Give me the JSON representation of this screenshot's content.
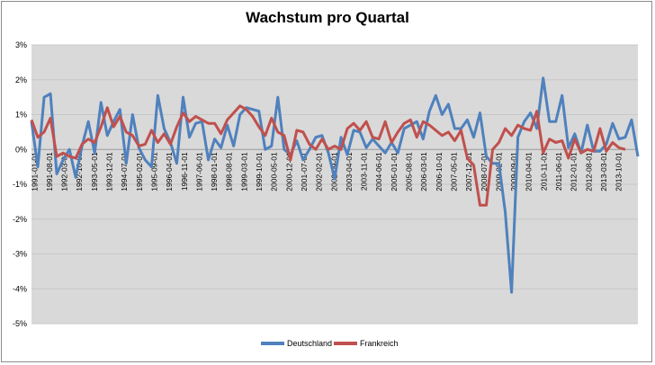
{
  "chart_data": {
    "type": "line",
    "title": "Wachstum pro Quartal",
    "ylim": [
      -5,
      3
    ],
    "yticks": [
      "3%",
      "2%",
      "1%",
      "0%",
      "-1%",
      "-2%",
      "-3%",
      "-4%",
      "-5%"
    ],
    "ytick_values": [
      3,
      2,
      1,
      0,
      -1,
      -2,
      -3,
      -4,
      -5
    ],
    "xlabels": [
      "1991-01-01",
      "1991-08-01",
      "1992-03-01",
      "1992-10-01",
      "1993-05-01",
      "1993-12-01",
      "1994-07-01",
      "1995-02-01",
      "1995-09-01",
      "1996-04-01",
      "1996-11-01",
      "1997-06-01",
      "1998-01-01",
      "1998-08-01",
      "1999-03-01",
      "1999-10-01",
      "2000-05-01",
      "2000-12-01",
      "2001-07-01",
      "2002-02-01",
      "2002-09-01",
      "2003-04-01",
      "2003-11-01",
      "2004-06-01",
      "2005-01-01",
      "2005-08-01",
      "2006-03-01",
      "2006-10-01",
      "2007-05-01",
      "2007-12-01",
      "2008-07-01",
      "2009-02-01",
      "2009-09-01",
      "2010-04-01",
      "2010-11-01",
      "2011-06-01",
      "2012-01-01",
      "2012-08-01",
      "2013-03-01",
      "2013-10-01"
    ],
    "grid": true,
    "legend_position": "bottom",
    "series": [
      {
        "name": "Deutschland",
        "color": "#4f81bd",
        "values": [
          0.8,
          -0.5,
          1.5,
          1.6,
          -0.7,
          -0.3,
          0.0,
          -0.8,
          0.1,
          0.8,
          -0.1,
          1.35,
          0.4,
          0.8,
          1.15,
          -0.4,
          1.0,
          0.05,
          -0.3,
          -0.5,
          1.55,
          0.6,
          0.2,
          -0.4,
          1.5,
          0.35,
          0.75,
          0.8,
          -0.3,
          0.3,
          0.05,
          0.7,
          0.1,
          1.0,
          1.2,
          1.15,
          1.1,
          0.0,
          0.1,
          1.5,
          0.0,
          -0.15,
          0.25,
          -0.3,
          0.0,
          0.35,
          0.4,
          -0.1,
          -0.85,
          0.35,
          -0.15,
          0.55,
          0.5,
          0.05,
          0.3,
          0.1,
          -0.1,
          0.2,
          -0.1,
          0.6,
          0.7,
          0.8,
          0.3,
          1.1,
          1.55,
          1.0,
          1.3,
          0.6,
          0.6,
          0.85,
          0.35,
          1.05,
          -0.2,
          -0.4,
          -0.4,
          -1.8,
          -4.1,
          0.35,
          0.8,
          1.05,
          0.6,
          2.05,
          0.8,
          0.8,
          1.55,
          0.05,
          0.45,
          -0.1,
          0.7,
          -0.05,
          -0.05,
          0.15,
          0.75,
          0.3,
          0.35,
          0.85,
          -0.2
        ]
      },
      {
        "name": "Frankreich",
        "color": "#c0504d",
        "values": [
          0.85,
          0.35,
          0.5,
          0.9,
          -0.2,
          -0.1,
          -0.2,
          -0.25,
          0.15,
          0.3,
          0.2,
          0.65,
          1.2,
          0.65,
          0.95,
          0.5,
          0.4,
          0.1,
          0.15,
          0.55,
          0.2,
          0.45,
          0.15,
          0.65,
          1.05,
          0.8,
          0.95,
          0.85,
          0.75,
          0.75,
          0.45,
          0.85,
          1.05,
          1.25,
          1.15,
          0.95,
          0.65,
          0.4,
          0.9,
          0.5,
          0.4,
          -0.3,
          0.55,
          0.5,
          0.15,
          0.0,
          0.3,
          0.0,
          0.1,
          0.0,
          0.6,
          0.75,
          0.55,
          0.8,
          0.35,
          0.3,
          0.8,
          0.2,
          0.5,
          0.75,
          0.85,
          0.35,
          0.8,
          0.7,
          0.55,
          0.4,
          0.5,
          0.25,
          0.55,
          -0.25,
          -0.45,
          -1.6,
          -1.6,
          0.0,
          0.2,
          0.6,
          0.4,
          0.7,
          0.6,
          0.55,
          1.1,
          -0.1,
          0.3,
          0.2,
          0.25,
          -0.25,
          0.3,
          -0.1,
          0.0,
          -0.05,
          0.6,
          -0.05,
          0.2,
          0.05,
          0.0
        ]
      }
    ]
  }
}
